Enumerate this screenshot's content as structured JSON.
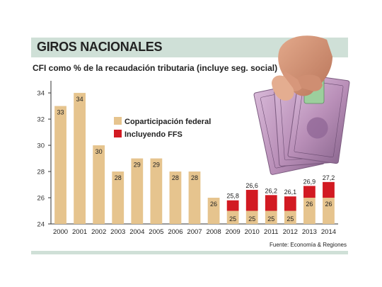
{
  "title": "GIROS NACIONALES",
  "subtitle": "CFI como % de la recaudación tributaria (incluye seg. social)",
  "source": "Fuente: Economía & Regiones",
  "colors": {
    "coparticipacion": "#e6c48e",
    "ffs": "#d21a22",
    "band": "#cfe0d7"
  },
  "chart_data": {
    "type": "bar",
    "stacked": true,
    "categories": [
      "2000",
      "2001",
      "2002",
      "2003",
      "2004",
      "2005",
      "2006",
      "2007",
      "2008",
      "2009",
      "2010",
      "2011",
      "2012",
      "2013",
      "2014"
    ],
    "series": [
      {
        "name": "Coparticipación federal",
        "values": [
          33,
          34,
          30,
          28,
          29,
          29,
          28,
          28,
          26,
          25,
          25,
          25,
          25,
          26,
          26
        ],
        "labels": [
          "33",
          "34",
          "30",
          "28",
          "29",
          "29",
          "28",
          "28",
          "26",
          "25",
          "25",
          "25",
          "25",
          "26",
          "26"
        ]
      },
      {
        "name": "Incluyendo FFS",
        "totals": [
          null,
          null,
          null,
          null,
          null,
          null,
          null,
          null,
          null,
          25.8,
          26.6,
          26.2,
          26.1,
          26.9,
          27.2
        ],
        "labels": [
          "",
          "",
          "",
          "",
          "",
          "",
          "",
          "",
          "",
          "25,8",
          "26,6",
          "26,2",
          "26,1",
          "26,9",
          "27,2"
        ]
      }
    ],
    "y_ticks": [
      "24",
      "26",
      "28",
      "30",
      "32",
      "34"
    ],
    "ylim": [
      24,
      34.6
    ],
    "legend": "center",
    "grid": false
  }
}
